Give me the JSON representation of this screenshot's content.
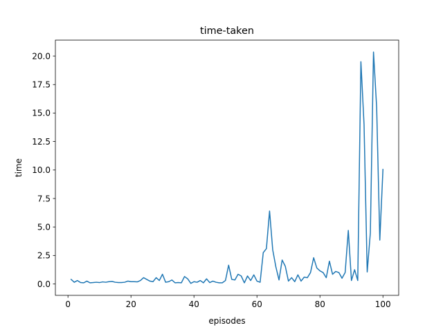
{
  "chart_data": {
    "type": "line",
    "title": "time-taken",
    "xlabel": "episodes",
    "ylabel": "time",
    "xlim": [
      -4.0,
      105.0
    ],
    "ylim": [
      -1.0,
      21.4
    ],
    "xticks": [
      0,
      20,
      40,
      60,
      80,
      100
    ],
    "yticks": [
      0.0,
      2.5,
      5.0,
      7.5,
      10.0,
      12.5,
      15.0,
      17.5,
      20.0
    ],
    "ytick_labels": [
      "0.0",
      "2.5",
      "5.0",
      "7.5",
      "10.0",
      "12.5",
      "15.0",
      "17.5",
      "20.0"
    ],
    "grid": false,
    "series": [
      {
        "color": "#1f77b4",
        "x": [
          1,
          2,
          3,
          4,
          5,
          6,
          7,
          8,
          9,
          10,
          11,
          12,
          13,
          14,
          15,
          16,
          17,
          18,
          19,
          20,
          21,
          22,
          23,
          24,
          25,
          26,
          27,
          28,
          29,
          30,
          31,
          32,
          33,
          34,
          35,
          36,
          37,
          38,
          39,
          40,
          41,
          42,
          43,
          44,
          45,
          46,
          47,
          48,
          49,
          50,
          51,
          52,
          53,
          54,
          55,
          56,
          57,
          58,
          59,
          60,
          61,
          62,
          63,
          64,
          65,
          66,
          67,
          68,
          69,
          70,
          71,
          72,
          73,
          74,
          75,
          76,
          77,
          78,
          79,
          80,
          81,
          82,
          83,
          84,
          85,
          86,
          87,
          88,
          89,
          90,
          91,
          92,
          93,
          94,
          95,
          96,
          97,
          98,
          99,
          100
        ],
        "y": [
          0.4,
          0.15,
          0.3,
          0.12,
          0.1,
          0.25,
          0.1,
          0.12,
          0.15,
          0.12,
          0.18,
          0.15,
          0.2,
          0.22,
          0.15,
          0.12,
          0.12,
          0.15,
          0.25,
          0.2,
          0.2,
          0.18,
          0.3,
          0.55,
          0.4,
          0.25,
          0.2,
          0.55,
          0.3,
          0.85,
          0.15,
          0.2,
          0.35,
          0.1,
          0.12,
          0.1,
          0.65,
          0.45,
          0.05,
          0.2,
          0.15,
          0.3,
          0.1,
          0.45,
          0.12,
          0.25,
          0.15,
          0.1,
          0.1,
          0.3,
          1.65,
          0.4,
          0.35,
          0.85,
          0.7,
          0.1,
          0.7,
          0.3,
          0.8,
          0.25,
          0.15,
          2.75,
          3.1,
          6.4,
          3.0,
          1.5,
          0.35,
          2.1,
          1.55,
          0.25,
          0.55,
          0.2,
          0.8,
          0.25,
          0.6,
          0.55,
          1.0,
          2.3,
          1.4,
          1.15,
          1.0,
          0.55,
          2.0,
          0.85,
          1.1,
          1.0,
          0.5,
          1.0,
          4.7,
          0.3,
          1.25,
          0.3,
          19.5,
          14.0,
          1.05,
          4.5,
          20.35,
          15.5,
          3.85,
          10.05
        ]
      }
    ]
  }
}
